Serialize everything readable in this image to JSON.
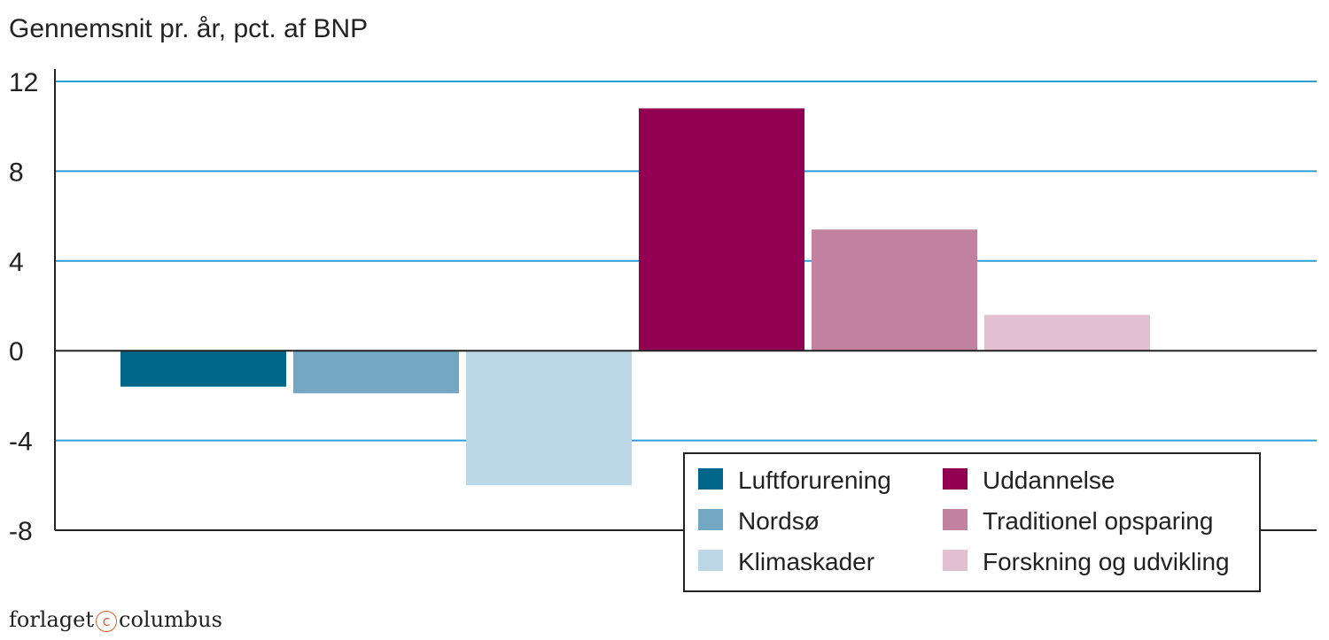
{
  "chart_data": {
    "type": "bar",
    "title": "",
    "ylabel": "Gennemsnit pr. år, pct. af BNP",
    "xlabel": "",
    "ylim": [
      -8,
      12
    ],
    "yticks": [
      12,
      8,
      4,
      0,
      -4,
      -8
    ],
    "grid": true,
    "legend_position": "bottom-right",
    "series": [
      {
        "name": "Luftforurening",
        "value": -1.6,
        "color": "#00668a"
      },
      {
        "name": "Nordsø",
        "value": -1.9,
        "color": "#74a8c2"
      },
      {
        "name": "Klimaskader",
        "value": -6.0,
        "color": "#bcd7e6"
      },
      {
        "name": "Uddannelse",
        "value": 10.8,
        "color": "#930052"
      },
      {
        "name": "Traditionel opsparing",
        "value": 5.4,
        "color": "#c1819f"
      },
      {
        "name": "Forskning og udvikling",
        "value": 1.6,
        "color": "#e2c0d2"
      }
    ]
  },
  "credit": {
    "left": "forlaget",
    "symbol": "c",
    "right": "columbus"
  }
}
